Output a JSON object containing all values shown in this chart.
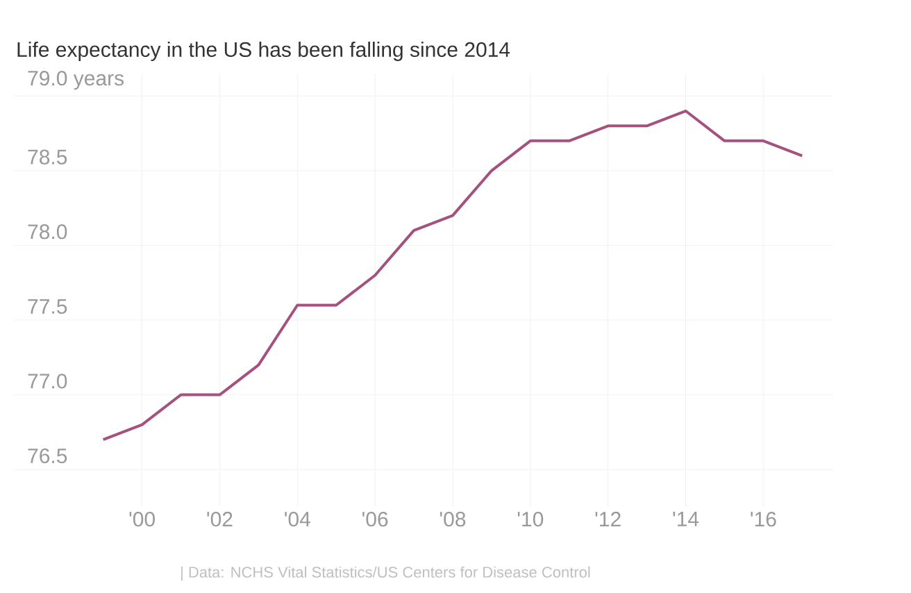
{
  "chart_data": {
    "type": "line",
    "title": "Life expectancy in the US has been falling since 2014",
    "annotations": [
      "| Data: NCHS Vital Statistics/US Centers for Disease Control"
    ],
    "x": [
      1999,
      2000,
      2001,
      2002,
      2003,
      2004,
      2005,
      2006,
      2007,
      2008,
      2009,
      2010,
      2011,
      2012,
      2013,
      2014,
      2015,
      2016,
      2017
    ],
    "series": [
      {
        "color": "#a5517f",
        "values": [
          76.7,
          76.8,
          77.0,
          77.0,
          77.2,
          77.6,
          77.6,
          77.8,
          78.1,
          78.2,
          78.5,
          78.7,
          78.7,
          78.8,
          78.8,
          78.9,
          78.7,
          78.7,
          78.6
        ]
      }
    ],
    "xlim": [
      1996.7,
      2017.8
    ],
    "ylim": [
      76.25,
      79.15
    ],
    "xticks": [
      {
        "value": 2000,
        "label": "'00"
      },
      {
        "value": 2002,
        "label": "'02"
      },
      {
        "value": 2004,
        "label": "'04"
      },
      {
        "value": 2006,
        "label": "'06"
      },
      {
        "value": 2008,
        "label": "'08"
      },
      {
        "value": 2010,
        "label": "'10"
      },
      {
        "value": 2012,
        "label": "'12"
      },
      {
        "value": 2014,
        "label": "'14"
      },
      {
        "value": 2016,
        "label": "'16"
      }
    ],
    "yticks": [
      76.5,
      {
        "value": 77,
        "label": "77.0"
      },
      77.5,
      {
        "value": 78,
        "label": "78.0"
      },
      78.5,
      {
        "value": 79,
        "label": "79.0 years"
      }
    ],
    "grid": true,
    "marker": "none",
    "line_style": "solid"
  }
}
